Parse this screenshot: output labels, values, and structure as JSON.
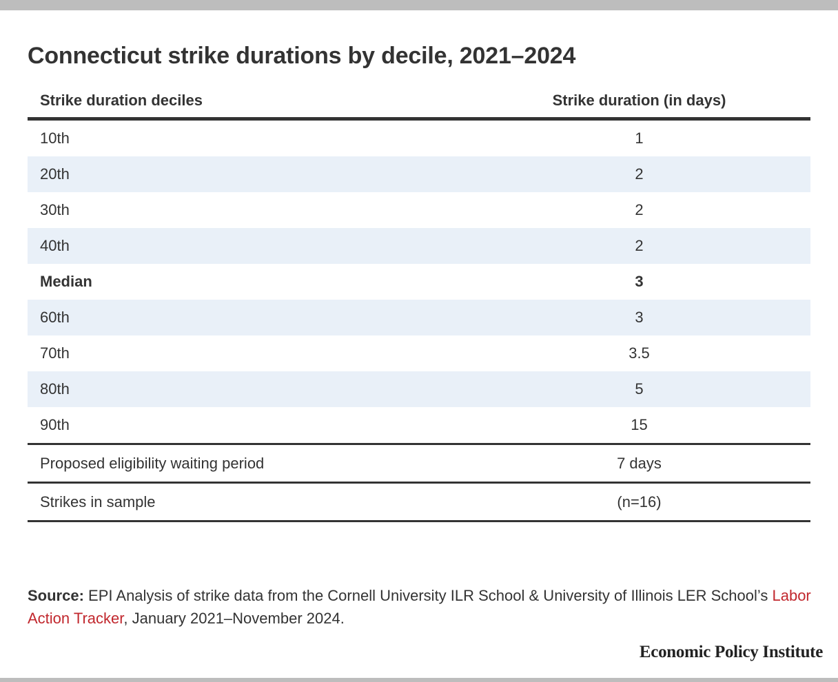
{
  "title": "Connecticut strike durations by decile, 2021–2024",
  "table": {
    "headers": [
      "Strike duration deciles",
      "Strike duration (in days)"
    ],
    "rows": [
      {
        "label": "10th",
        "value": "1"
      },
      {
        "label": "20th",
        "value": "2"
      },
      {
        "label": "30th",
        "value": "2"
      },
      {
        "label": "40th",
        "value": "2"
      },
      {
        "label": "Median",
        "value": "3"
      },
      {
        "label": "60th",
        "value": "3"
      },
      {
        "label": "70th",
        "value": "3.5"
      },
      {
        "label": "80th",
        "value": "5"
      },
      {
        "label": "90th",
        "value": "15"
      }
    ],
    "extra_rows": [
      {
        "label": "Proposed eligibility waiting period",
        "value": "7 days"
      },
      {
        "label": "Strikes in sample",
        "value": "(n=16)"
      }
    ]
  },
  "chart_data": {
    "type": "table",
    "title": "Connecticut strike durations by decile, 2021–2024",
    "columns": [
      "Strike duration deciles",
      "Strike duration (in days)"
    ],
    "categories": [
      "10th",
      "20th",
      "30th",
      "40th",
      "Median",
      "60th",
      "70th",
      "80th",
      "90th"
    ],
    "values": [
      1,
      2,
      2,
      2,
      3,
      3,
      3.5,
      5,
      15
    ],
    "extra_rows": [
      {
        "label": "Proposed eligibility waiting period",
        "value": "7 days"
      },
      {
        "label": "Strikes in sample",
        "value": "(n=16)"
      }
    ]
  },
  "source": {
    "prefix": "Source:",
    "text_before": " EPI Analysis of strike data from the Cornell University ILR School & University of Illinois LER School’s ",
    "link_text": "Labor Action Tracker",
    "text_after": ", January 2021–November 2024."
  },
  "brand": "Economic Policy Institute",
  "colors": {
    "text": "#333333",
    "stripe": "#e9f0f8",
    "rule": "#333333",
    "link": "#c1272d",
    "frame_bar": "#bdbdbd"
  }
}
